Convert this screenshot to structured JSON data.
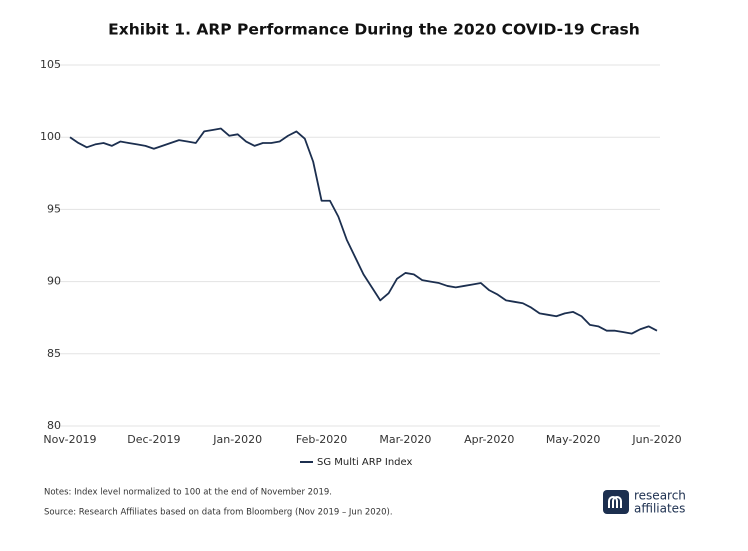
{
  "chart_data": {
    "type": "line",
    "title": "Exhibit 1. ARP Performance During the 2020 COVID-19 Crash",
    "categories": [
      "Nov-2019",
      null,
      null,
      null,
      null,
      null,
      null,
      null,
      null,
      null,
      "Dec-2019",
      null,
      null,
      null,
      null,
      null,
      null,
      null,
      null,
      null,
      "Jan-2020",
      null,
      null,
      null,
      null,
      null,
      null,
      null,
      null,
      null,
      "Feb-2020",
      null,
      null,
      null,
      null,
      null,
      null,
      null,
      null,
      null,
      "Mar-2020",
      null,
      null,
      null,
      null,
      null,
      null,
      null,
      null,
      null,
      "Apr-2020",
      null,
      null,
      null,
      null,
      null,
      null,
      null,
      null,
      null,
      "May-2020",
      null,
      null,
      null,
      null,
      null,
      null,
      null,
      null,
      null,
      "Jun-2020"
    ],
    "series": [
      {
        "name": "SG Multi ARP Index",
        "color": "#1c2f4f",
        "values": [
          100.0,
          99.6,
          99.3,
          99.5,
          99.6,
          99.4,
          99.7,
          99.6,
          99.5,
          99.4,
          99.2,
          99.4,
          99.6,
          99.8,
          99.7,
          99.6,
          100.4,
          100.5,
          100.6,
          100.1,
          100.2,
          99.7,
          99.4,
          99.6,
          99.6,
          99.7,
          100.1,
          100.4,
          99.9,
          98.3,
          95.6,
          95.6,
          94.5,
          92.9,
          91.7,
          90.5,
          89.6,
          88.7,
          89.2,
          90.2,
          90.6,
          90.5,
          90.1,
          90.0,
          89.9,
          89.7,
          89.6,
          89.7,
          89.8,
          89.9,
          89.4,
          89.1,
          88.7,
          88.6,
          88.5,
          88.2,
          87.8,
          87.7,
          87.6,
          87.8,
          87.9,
          87.6,
          87.0,
          86.9,
          86.6,
          86.6,
          86.5,
          86.4,
          86.7,
          86.9,
          86.6
        ]
      }
    ],
    "ylim": [
      80,
      105
    ],
    "yticks": [
      80,
      85,
      90,
      95,
      100,
      105
    ],
    "grid": true,
    "legend": "bottom"
  },
  "footer": {
    "notes": "Notes: Index level normalized to 100 at the end of November 2019.",
    "source": "Source: Research Affiliates based on data from Bloomberg (Nov 2019 – Jun 2020).",
    "brand": [
      "research",
      "affiliates"
    ]
  }
}
